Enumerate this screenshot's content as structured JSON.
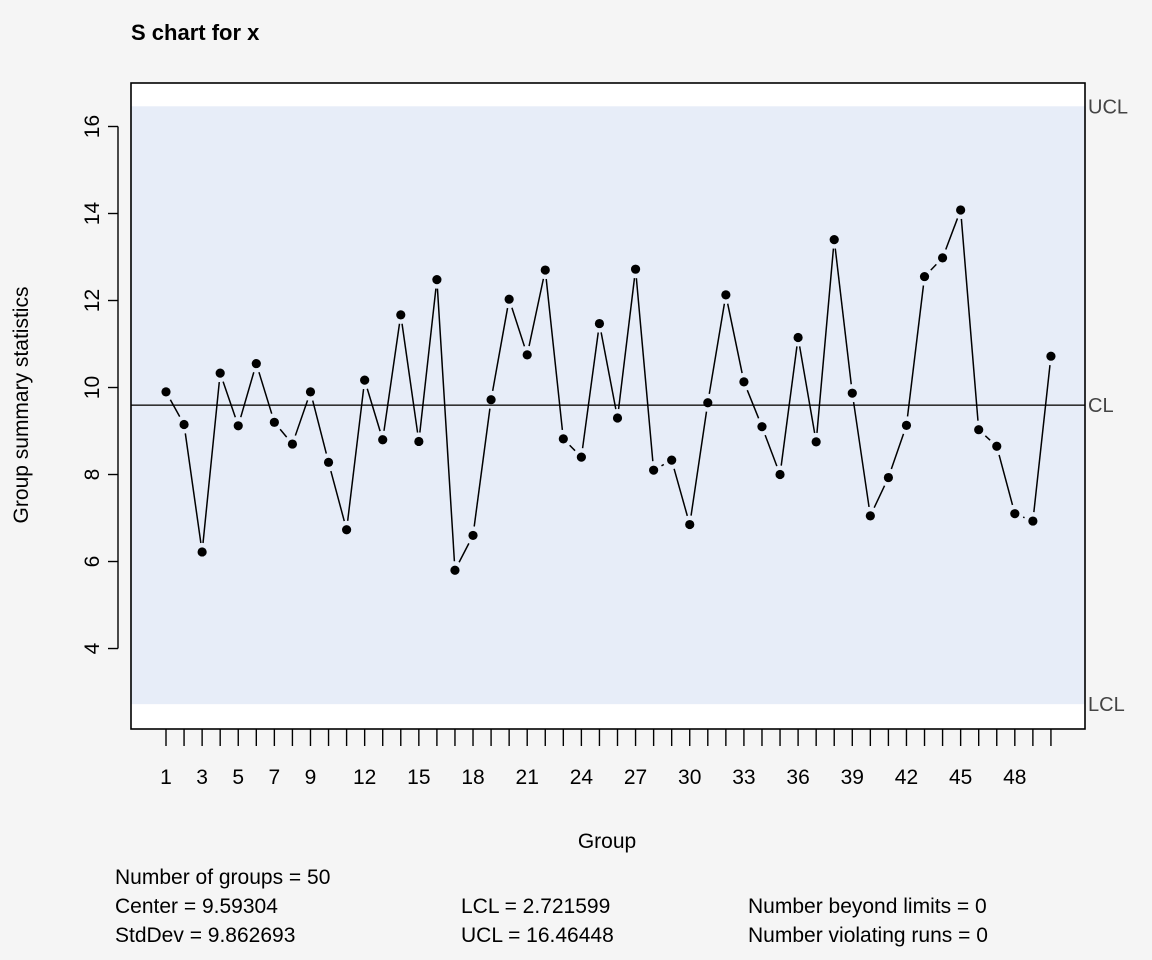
{
  "chart_data": {
    "type": "line",
    "title": "S chart for x",
    "xlabel": "Group",
    "ylabel": "Group summary statistics",
    "x": [
      1,
      2,
      3,
      4,
      5,
      6,
      7,
      8,
      9,
      10,
      11,
      12,
      13,
      14,
      15,
      16,
      17,
      18,
      19,
      20,
      21,
      22,
      23,
      24,
      25,
      26,
      27,
      28,
      29,
      30,
      31,
      32,
      33,
      34,
      35,
      36,
      37,
      38,
      39,
      40,
      41,
      42,
      43,
      44,
      45,
      46,
      47,
      48,
      49,
      50
    ],
    "values": [
      9.9,
      9.15,
      6.22,
      10.33,
      9.12,
      10.55,
      9.2,
      8.7,
      9.9,
      8.28,
      6.73,
      10.17,
      8.8,
      11.67,
      8.76,
      12.48,
      5.8,
      6.6,
      9.72,
      12.03,
      10.75,
      12.7,
      8.82,
      8.4,
      11.47,
      9.3,
      12.72,
      8.1,
      8.33,
      6.85,
      9.65,
      12.13,
      10.13,
      9.1,
      8.0,
      11.15,
      8.75,
      13.4,
      9.87,
      7.05,
      7.93,
      9.13,
      12.55,
      12.98,
      14.08,
      9.03,
      8.65,
      7.1,
      6.93,
      10.72
    ],
    "x_tick_labels": [
      "1",
      "3",
      "5",
      "7",
      "9",
      "12",
      "15",
      "18",
      "21",
      "24",
      "27",
      "30",
      "33",
      "36",
      "39",
      "42",
      "45",
      "48"
    ],
    "y_ticks": [
      4,
      6,
      8,
      10,
      12,
      14,
      16
    ],
    "ylim": [
      2.15,
      17.0
    ],
    "center_line": 9.59304,
    "lcl": 2.721599,
    "ucl": 16.46448,
    "limit_labels": {
      "ucl": "UCL",
      "cl": "CL",
      "lcl": "LCL"
    },
    "grid": false,
    "colors": {
      "background": "#f5f5f5",
      "plot_area": "#ffffff",
      "control_band": "#e7edf8",
      "line": "#000000",
      "center_line": "#333333"
    }
  },
  "stats": {
    "groups": "Number of groups = 50",
    "center": "Center = 9.59304",
    "stddev": "StdDev = 9.862693",
    "lcl": "LCL = 2.721599",
    "ucl": "UCL = 16.46448",
    "beyond": "Number beyond limits = 0",
    "runs": "Number violating runs = 0"
  }
}
